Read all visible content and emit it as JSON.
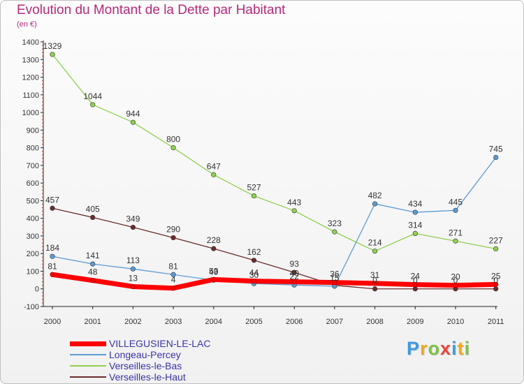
{
  "chart_data": {
    "type": "line",
    "title": "Evolution du Montant de la Dette par Habitant",
    "subtitle": "(en €)",
    "x": [
      "2000",
      "2001",
      "2002",
      "2003",
      "2004",
      "2005",
      "2006",
      "2007",
      "2008",
      "2009",
      "2010",
      "2011"
    ],
    "ylim": [
      -100,
      1400
    ],
    "yticks": [
      "-100",
      "0",
      "100",
      "200",
      "300",
      "400",
      "500",
      "600",
      "700",
      "800",
      "900",
      "1000",
      "1100",
      "1200",
      "1300",
      "1400"
    ],
    "grid": false,
    "legend_position": "bottom-left",
    "series": [
      {
        "name": "VILLEGUSIEN-LE-LAC",
        "color": "#ff0000",
        "values": [
          81,
          48,
          13,
          4,
          53,
          44,
          40,
          36,
          31,
          24,
          20,
          25
        ],
        "labels": [
          "81",
          "48",
          "13",
          "4",
          "53",
          "44",
          "40",
          "36",
          "31",
          "24",
          "20",
          "25"
        ]
      },
      {
        "name": "Longeau-Percey",
        "color": "#5b9bd5",
        "values": [
          184,
          141,
          113,
          81,
          49,
          30,
          22,
          15,
          482,
          434,
          445,
          745
        ],
        "labels": [
          "184",
          "141",
          "113",
          "81",
          "49",
          "30",
          "22",
          "15",
          "482",
          "434",
          "445",
          "745"
        ]
      },
      {
        "name": "Verseilles-le-Bas",
        "color": "#8fd14f",
        "values": [
          1329,
          1044,
          944,
          800,
          647,
          527,
          443,
          323,
          214,
          314,
          271,
          227
        ],
        "labels": [
          "1329",
          "1044",
          "944",
          "800",
          "647",
          "527",
          "443",
          "323",
          "214",
          "314",
          "271",
          "227"
        ]
      },
      {
        "name": "Verseilles-le-Haut",
        "color": "#6b2c2c",
        "values": [
          457,
          405,
          349,
          290,
          228,
          162,
          93,
          20,
          0,
          0,
          0,
          0
        ],
        "labels": [
          "457",
          "405",
          "349",
          "290",
          "228",
          "162",
          "93",
          "",
          "0",
          "0",
          "0",
          "0"
        ]
      }
    ]
  },
  "brand": {
    "letters": [
      "P",
      "r",
      "o",
      "x",
      "i",
      "t",
      "i"
    ],
    "colors": [
      "#3b9be0",
      "#f5a623",
      "#7cc242",
      "#e8453c",
      "#3b9be0",
      "#f5a623",
      "#7cc242"
    ]
  }
}
